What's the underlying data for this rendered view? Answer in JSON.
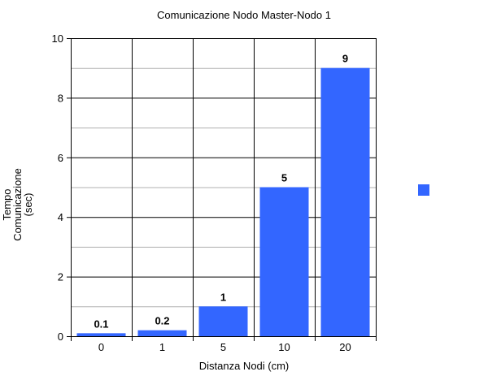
{
  "chart_data": {
    "type": "bar",
    "title": "Comunicazione Nodo Master-Nodo 1",
    "xlabel": "Distanza Nodi (cm)",
    "ylabel": [
      "Tempo",
      "Comunicazione",
      "(sec)"
    ],
    "categories": [
      "0",
      "1",
      "5",
      "10",
      "20"
    ],
    "values": [
      0.1,
      0.2,
      1,
      5,
      9
    ],
    "data_labels": [
      "0.1",
      "0.2",
      "1",
      "5",
      "9"
    ],
    "ylim": [
      0,
      10
    ],
    "yticks": [
      0,
      2,
      4,
      6,
      8,
      10
    ],
    "ytick_labels": [
      "0",
      "2",
      "4",
      "6",
      "8",
      "10"
    ],
    "minor_grid_step": 1,
    "grid": true,
    "legend": "right",
    "bar_color": "#3366ff"
  }
}
